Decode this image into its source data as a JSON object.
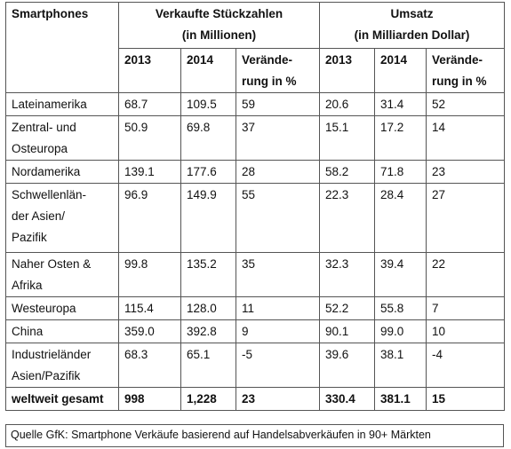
{
  "header": {
    "category": "Smartphones",
    "units_title": "Verkaufte Stückzahlen",
    "units_subtitle": "(in Millionen)",
    "revenue_title": "Umsatz",
    "revenue_subtitle": "(in Milliarden Dollar)",
    "year_2013": "2013",
    "year_2014": "2014",
    "change_line1": "Verände-",
    "change_line2": "rung in %"
  },
  "rows": [
    {
      "region": [
        "Lateinamerika"
      ],
      "u13": "68.7",
      "u14": "109.5",
      "uch": "59",
      "r13": "20.6",
      "r14": "31.4",
      "rch": "52"
    },
    {
      "region": [
        "Zentral- und",
        "Osteuropa"
      ],
      "u13": "50.9",
      "u14": "69.8",
      "uch": "37",
      "r13": "15.1",
      "r14": "17.2",
      "rch": "14"
    },
    {
      "region": [
        "Nordamerika"
      ],
      "u13": "139.1",
      "u14": "177.6",
      "uch": "28",
      "r13": "58.2",
      "r14": "71.8",
      "rch": "23"
    },
    {
      "region": [
        "Schwellenlän-",
        "der Asien/",
        "Pazifik"
      ],
      "u13": "96.9",
      "u14": "149.9",
      "uch": "55",
      "r13": "22.3",
      "r14": "28.4",
      "rch": "27"
    },
    {
      "region": [
        "Naher Osten &",
        "Afrika"
      ],
      "u13": "99.8",
      "u14": "135.2",
      "uch": "35",
      "r13": "32.3",
      "r14": "39.4",
      "rch": "22"
    },
    {
      "region": [
        "Westeuropa"
      ],
      "u13": "115.4",
      "u14": "128.0",
      "uch": "11",
      "r13": "52.2",
      "r14": "55.8",
      "rch": "7"
    },
    {
      "region": [
        "China"
      ],
      "u13": "359.0",
      "u14": "392.8",
      "uch": "9",
      "r13": "90.1",
      "r14": "99.0",
      "rch": "10"
    },
    {
      "region": [
        "Industrieländer",
        "Asien/Pazifik"
      ],
      "u13": "68.3",
      "u14": "65.1",
      "uch": "-5",
      "r13": "39.6",
      "r14": "38.1",
      "rch": "-4"
    }
  ],
  "total": {
    "label": "weltweit gesamt",
    "u13": "998",
    "u14": "1,228",
    "uch": "23",
    "r13": "330.4",
    "r14": "381.1",
    "rch": "15"
  },
  "source": "Quelle GfK: Smartphone Verkäufe basierend auf Handelsabverkäufen  in 90+ Märkten"
}
